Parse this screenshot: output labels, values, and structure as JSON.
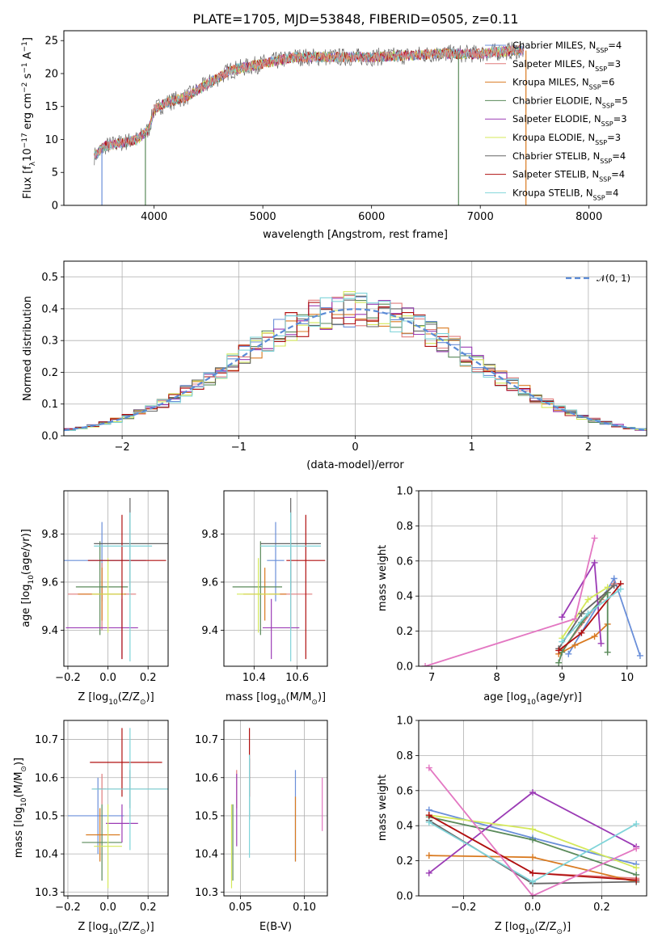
{
  "figure_title": "PLATE=1705, MJD=53848, FIBERID=0505, z=0.11",
  "legend_entries": [
    "Chabrier MILES, N$_{SSP}$=4",
    "Salpeter MILES, N$_{SSP}$=3",
    "Kroupa MILES, N$_{SSP}$=6",
    "Chabrier ELODIE, N$_{SSP}$=5",
    "Salpeter ELODIE, N$_{SSP}$=3",
    "Kroupa ELODIE, N$_{SSP}$=3",
    "Chabrier STELIB, N$_{SSP}$=4",
    "Salpeter STELIB, N$_{SSP}$=4",
    "Kroupa STELIB, N$_{SSP}$=4"
  ],
  "legend_display": [
    {
      "pre": "Chabrier MILES, N",
      "sub": "SSP",
      "post": "=4"
    },
    {
      "pre": "Salpeter MILES, N",
      "sub": "SSP",
      "post": "=3"
    },
    {
      "pre": "Kroupa MILES, N",
      "sub": "SSP",
      "post": "=6"
    },
    {
      "pre": "Chabrier ELODIE, N",
      "sub": "SSP",
      "post": "=5"
    },
    {
      "pre": "Salpeter ELODIE, N",
      "sub": "SSP",
      "post": "=3"
    },
    {
      "pre": "Kroupa ELODIE, N",
      "sub": "SSP",
      "post": "=3"
    },
    {
      "pre": "Chabrier STELIB, N",
      "sub": "SSP",
      "post": "=4"
    },
    {
      "pre": "Salpeter STELIB, N",
      "sub": "SSP",
      "post": "=4"
    },
    {
      "pre": "Kroupa STELIB, N",
      "sub": "SSP",
      "post": "=4"
    }
  ],
  "series_colors": [
    "#6a8fd9",
    "#e07c7c",
    "#d97a20",
    "#5a8a5a",
    "#9b3bb5",
    "#d4e85a",
    "#666666",
    "#b01010",
    "#7fd4d9"
  ],
  "pink_color": "#e377c2",
  "chart_data": [
    {
      "type": "line",
      "ylabel_pre": "Flux [f",
      "ylabel_sub": "λ",
      "ylabel_mid": "10",
      "ylabel_sup1": "−17",
      "ylabel_mid2": " erg cm",
      "ylabel_sup2": "−2",
      "ylabel_mid3": " s",
      "ylabel_sup3": "−1",
      "ylabel_mid4": " A",
      "ylabel_sup4": "−1",
      "ylabel_end": "]",
      "xlabel": "wavelength [Angstrom, rest frame]",
      "xlim": [
        3170,
        8530
      ],
      "ylim": [
        0,
        26.5
      ],
      "xticks": [
        4000,
        5000,
        6000,
        7000,
        8000
      ],
      "yticks": [
        0,
        5,
        10,
        15,
        20,
        25
      ],
      "xtick_labels": [
        "4000",
        "5000",
        "6000",
        "7000",
        "8000"
      ],
      "ytick_labels": [
        "0",
        "5",
        "10",
        "15",
        "20",
        "25"
      ],
      "continuum": [
        [
          3450,
          7.5
        ],
        [
          3550,
          9.0
        ],
        [
          3700,
          9.5
        ],
        [
          3850,
          10.0
        ],
        [
          3950,
          11.5
        ],
        [
          4000,
          14.5
        ],
        [
          4100,
          15.5
        ],
        [
          4300,
          16.5
        ],
        [
          4500,
          18.5
        ],
        [
          4700,
          20.5
        ],
        [
          5000,
          21.5
        ],
        [
          5300,
          22.5
        ],
        [
          5600,
          22.5
        ],
        [
          6000,
          22.5
        ],
        [
          6300,
          22.7
        ],
        [
          6600,
          23.0
        ],
        [
          7000,
          23.0
        ],
        [
          7300,
          23.5
        ]
      ]
    },
    {
      "type": "line",
      "xlabel": "(data-model)/error",
      "ylabel": "Normed distribution",
      "xlim": [
        -2.5,
        2.5
      ],
      "ylim": [
        0,
        0.55
      ],
      "xticks": [
        -2,
        -1,
        0,
        1,
        2
      ],
      "yticks": [
        0.0,
        0.1,
        0.2,
        0.3,
        0.4,
        0.5
      ],
      "xtick_labels": [
        "−2",
        "−1",
        "0",
        "1",
        "2"
      ],
      "ytick_labels": [
        "0.0",
        "0.1",
        "0.2",
        "0.3",
        "0.4",
        "0.5"
      ],
      "gauss_label": "𝒩(0, 1)"
    },
    {
      "type": "scatter",
      "xlabel_pre": "Z [log",
      "xlabel_sub": "10",
      "xlabel_post": "(Z/Z",
      "xlabel_sub2": "⊙",
      "xlabel_end": ")]",
      "ylabel_pre": "age  [log",
      "ylabel_sub": "10",
      "ylabel_post": "(age/yr)]",
      "xlim": [
        -0.22,
        0.3
      ],
      "ylim": [
        9.25,
        9.98
      ],
      "xticks": [
        -0.2,
        0.0,
        0.2
      ],
      "yticks": [
        9.4,
        9.6,
        9.8
      ],
      "xtick_labels": [
        "−0.2",
        "0.0",
        "0.2"
      ],
      "ytick_labels": [
        "9.4",
        "9.6",
        "9.8"
      ],
      "points": [
        {
          "x": -0.03,
          "y": 9.69,
          "xerr": [
            0.22,
            0.22
          ],
          "yerr": [
            0.17,
            0.16
          ]
        },
        {
          "x": -0.03,
          "y": 9.55,
          "xerr": [
            0.17,
            0.17
          ],
          "yerr": [
            0.15,
            0.13
          ]
        },
        {
          "x": -0.03,
          "y": 9.55,
          "xerr": [
            0.12,
            0.12
          ],
          "yerr": [
            0.11,
            0.11
          ]
        },
        {
          "x": -0.04,
          "y": 9.58,
          "xerr": [
            0.12,
            0.14
          ],
          "yerr": [
            0.2,
            0.19
          ]
        },
        {
          "x": 0.07,
          "y": 9.41,
          "xerr": [
            0.28,
            0.08
          ],
          "yerr": [
            0.13,
            0.12
          ]
        },
        {
          "x": 0.0,
          "y": 9.55,
          "xerr": [
            0.08,
            0.08
          ],
          "yerr": [
            0.16,
            0.15
          ]
        },
        {
          "x": 0.11,
          "y": 9.76,
          "xerr": [
            0.18,
            0.2
          ],
          "yerr": [
            0.2,
            0.19
          ]
        },
        {
          "x": 0.07,
          "y": 9.69,
          "xerr": [
            0.17,
            0.22
          ],
          "yerr": [
            0.41,
            0.19
          ]
        },
        {
          "x": 0.11,
          "y": 9.75,
          "xerr": [
            0.18,
            0.11
          ],
          "yerr": [
            0.48,
            0.14
          ]
        }
      ]
    },
    {
      "type": "scatter",
      "xlabel_pre": "mass [log",
      "xlabel_sub": "10",
      "xlabel_post": "(M/M",
      "xlabel_sub2": "⊙",
      "xlabel_end": ")]",
      "xlim": [
        10.26,
        10.74
      ],
      "ylim": [
        9.25,
        9.98
      ],
      "xticks": [
        10.4,
        10.6
      ],
      "yticks": [
        9.4,
        9.6,
        9.8
      ],
      "xtick_labels": [
        "10.4",
        "10.6"
      ],
      "ytick_labels": [
        "9.4",
        "9.6",
        "9.8"
      ],
      "points": [
        {
          "x": 10.5,
          "y": 9.69,
          "xerr": [
            0.04,
            0.04
          ],
          "yerr": [
            0.17,
            0.16
          ]
        },
        {
          "x": 10.57,
          "y": 9.55,
          "xerr": [
            0.1,
            0.1
          ],
          "yerr": [
            0.15,
            0.13
          ]
        },
        {
          "x": 10.45,
          "y": 9.55,
          "xerr": [
            0.1,
            0.1
          ],
          "yerr": [
            0.11,
            0.11
          ]
        },
        {
          "x": 10.43,
          "y": 9.58,
          "xerr": [
            0.13,
            0.1
          ],
          "yerr": [
            0.2,
            0.19
          ]
        },
        {
          "x": 10.48,
          "y": 9.41,
          "xerr": [
            0.04,
            0.13
          ],
          "yerr": [
            0.13,
            0.12
          ]
        },
        {
          "x": 10.42,
          "y": 9.55,
          "xerr": [
            0.1,
            0.1
          ],
          "yerr": [
            0.16,
            0.15
          ]
        },
        {
          "x": 10.57,
          "y": 9.76,
          "xerr": [
            0.14,
            0.14
          ],
          "yerr": [
            0.2,
            0.19
          ]
        },
        {
          "x": 10.64,
          "y": 9.69,
          "xerr": [
            0.09,
            0.09
          ],
          "yerr": [
            0.41,
            0.19
          ]
        },
        {
          "x": 10.57,
          "y": 9.75,
          "xerr": [
            0.14,
            0.14
          ],
          "yerr": [
            0.48,
            0.14
          ]
        }
      ]
    },
    {
      "type": "line",
      "xlabel_pre": "age  [log",
      "xlabel_sub": "10",
      "xlabel_post": "(age/yr)]",
      "ylabel": "mass weight",
      "xlim": [
        6.8,
        10.3
      ],
      "ylim": [
        0,
        1
      ],
      "xticks": [
        7,
        8,
        9,
        10
      ],
      "yticks": [
        0.0,
        0.2,
        0.4,
        0.6,
        0.8,
        1.0
      ],
      "xtick_labels": [
        "7",
        "8",
        "9",
        "10"
      ],
      "ytick_labels": [
        "0.0",
        "0.2",
        "0.4",
        "0.6",
        "0.8",
        "1.0"
      ],
      "series": [
        {
          "points": [
            [
              9.1,
              0.07
            ],
            [
              9.8,
              0.5
            ],
            [
              10.2,
              0.06
            ]
          ]
        },
        {
          "points": [
            [
              9.0,
              0.09
            ],
            [
              9.6,
              0.38
            ],
            [
              9.8,
              0.47
            ]
          ]
        },
        {
          "points": [
            [
              8.95,
              0.07
            ],
            [
              9.2,
              0.12
            ],
            [
              9.5,
              0.17
            ],
            [
              9.7,
              0.24
            ]
          ]
        },
        {
          "points": [
            [
              8.95,
              0.02
            ],
            [
              9.0,
              0.08
            ],
            [
              9.3,
              0.25
            ],
            [
              9.7,
              0.42
            ],
            [
              9.7,
              0.08
            ]
          ]
        },
        {
          "points": [
            [
              9.0,
              0.28
            ],
            [
              9.5,
              0.59
            ],
            [
              9.6,
              0.13
            ]
          ]
        },
        {
          "points": [
            [
              9.0,
              0.16
            ],
            [
              9.4,
              0.38
            ],
            [
              9.7,
              0.45
            ]
          ]
        },
        {
          "points": [
            [
              8.95,
              0.1
            ],
            [
              9.3,
              0.3
            ],
            [
              9.8,
              0.46
            ]
          ]
        },
        {
          "points": [
            [
              8.95,
              0.09
            ],
            [
              9.3,
              0.19
            ],
            [
              9.9,
              0.47
            ]
          ]
        },
        {
          "points": [
            [
              9.0,
              0.14
            ],
            [
              9.4,
              0.3
            ],
            [
              9.9,
              0.44
            ]
          ]
        },
        {
          "points": [
            [
              6.9,
              0.0
            ],
            [
              9.2,
              0.27
            ],
            [
              9.5,
              0.73
            ]
          ]
        }
      ]
    },
    {
      "type": "scatter",
      "xlabel_pre": "Z [log",
      "xlabel_sub": "10",
      "xlabel_post": "(Z/Z",
      "xlabel_sub2": "⊙",
      "xlabel_end": ")]",
      "ylabel_pre": "mass [log",
      "ylabel_sub": "10",
      "ylabel_post": "(M/M",
      "ylabel_sub2": "⊙",
      "ylabel_end": ")]",
      "xlim": [
        -0.22,
        0.3
      ],
      "ylim": [
        10.29,
        10.75
      ],
      "xticks": [
        -0.2,
        0.0,
        0.2
      ],
      "yticks": [
        10.3,
        10.4,
        10.5,
        10.6,
        10.7
      ],
      "xtick_labels": [
        "−0.2",
        "0.0",
        "0.2"
      ],
      "ytick_labels": [
        "10.3",
        "10.4",
        "10.5",
        "10.6",
        "10.7"
      ],
      "points": [
        {
          "x": -0.05,
          "y": 10.5,
          "xerr": [
            0.15,
            0.13
          ],
          "yerr": [
            0.1,
            0.1
          ]
        },
        {
          "x": -0.03,
          "y": 10.57,
          "xerr": [
            0.02,
            0.02
          ],
          "yerr": [
            0.04,
            0.04
          ]
        },
        {
          "x": -0.04,
          "y": 10.45,
          "xerr": [
            0.07,
            0.1
          ],
          "yerr": [
            0.07,
            0.07
          ]
        },
        {
          "x": -0.03,
          "y": 10.43,
          "xerr": [
            0.1,
            0.1
          ],
          "yerr": [
            0.1,
            0.1
          ]
        },
        {
          "x": 0.07,
          "y": 10.48,
          "xerr": [
            0.08,
            0.08
          ],
          "yerr": [
            0.05,
            0.05
          ]
        },
        {
          "x": 0.0,
          "y": 10.42,
          "xerr": [
            0.07,
            0.07
          ],
          "yerr": [
            0.11,
            0.11
          ]
        },
        {
          "x": 0.11,
          "y": 10.57,
          "xerr": [
            0.19,
            0.19
          ],
          "yerr": [
            0.05,
            0.05
          ]
        },
        {
          "x": 0.07,
          "y": 10.64,
          "xerr": [
            0.16,
            0.2
          ],
          "yerr": [
            0.09,
            0.09
          ]
        },
        {
          "x": 0.11,
          "y": 10.57,
          "xerr": [
            0.19,
            0.19
          ],
          "yerr": [
            0.16,
            0.16
          ]
        }
      ]
    },
    {
      "type": "scatter",
      "xlabel": "E(B-V)",
      "xlim": [
        0.037,
        0.118
      ],
      "ylim": [
        10.29,
        10.75
      ],
      "xticks": [
        0.05,
        0.1
      ],
      "yticks": [
        10.3,
        10.4,
        10.5,
        10.6,
        10.7
      ],
      "xtick_labels": [
        "0.05",
        "0.10"
      ],
      "ytick_labels": [
        "10.3",
        "10.4",
        "10.5",
        "10.6",
        "10.7"
      ],
      "points": [
        {
          "x": 0.093,
          "y": 10.5,
          "yerr": [
            0.12,
            0.12
          ]
        },
        {
          "x": 0.047,
          "y": 10.57,
          "yerr": [
            0.05,
            0.05
          ]
        },
        {
          "x": 0.093,
          "y": 10.45,
          "yerr": [
            0.07,
            0.1
          ]
        },
        {
          "x": 0.044,
          "y": 10.43,
          "yerr": [
            0.1,
            0.1
          ]
        },
        {
          "x": 0.047,
          "y": 10.48,
          "yerr": [
            0.06,
            0.13
          ]
        },
        {
          "x": 0.043,
          "y": 10.42,
          "yerr": [
            0.11,
            0.11
          ]
        },
        {
          "x": 0.057,
          "y": 10.57,
          "yerr": [
            0.08,
            0.08
          ]
        },
        {
          "x": 0.057,
          "y": 10.64,
          "yerr": [
            0.09,
            0.09
          ]
        },
        {
          "x": 0.057,
          "y": 10.57,
          "yerr": [
            0.18,
            0.09
          ]
        },
        {
          "x": 0.114,
          "y": 10.53,
          "yerr": [
            0.07,
            0.07
          ]
        }
      ]
    },
    {
      "type": "line",
      "xlabel_pre": "Z [log",
      "xlabel_sub": "10",
      "xlabel_post": "(Z/Z",
      "xlabel_sub2": "⊙",
      "xlabel_end": ")]",
      "ylabel": "mass weight",
      "xlim": [
        -0.33,
        0.33
      ],
      "ylim": [
        0,
        1
      ],
      "xticks": [
        -0.2,
        0.0,
        0.2
      ],
      "yticks": [
        0.0,
        0.2,
        0.4,
        0.6,
        0.8,
        1.0
      ],
      "xtick_labels": [
        "−0.2",
        "0.0",
        "0.2"
      ],
      "ytick_labels": [
        "0.0",
        "0.2",
        "0.4",
        "0.6",
        "0.8",
        "1.0"
      ],
      "series": [
        {
          "points": [
            [
              -0.3,
              0.49
            ],
            [
              0.0,
              0.33
            ],
            [
              0.3,
              0.18
            ]
          ]
        },
        {
          "points": [
            [
              -0.3,
              0.46
            ],
            [
              0.0,
              0.13
            ],
            [
              0.3,
              0.1
            ]
          ]
        },
        {
          "points": [
            [
              -0.3,
              0.23
            ],
            [
              0.0,
              0.22
            ],
            [
              0.3,
              0.08
            ]
          ]
        },
        {
          "points": [
            [
              -0.3,
              0.45
            ],
            [
              0.0,
              0.32
            ],
            [
              0.3,
              0.12
            ]
          ]
        },
        {
          "points": [
            [
              -0.3,
              0.13
            ],
            [
              0.0,
              0.59
            ],
            [
              0.3,
              0.28
            ]
          ]
        },
        {
          "points": [
            [
              -0.3,
              0.46
            ],
            [
              0.0,
              0.38
            ],
            [
              0.3,
              0.16
            ]
          ]
        },
        {
          "points": [
            [
              -0.3,
              0.43
            ],
            [
              0.0,
              0.07
            ],
            [
              0.3,
              0.08
            ]
          ]
        },
        {
          "points": [
            [
              -0.3,
              0.46
            ],
            [
              0.0,
              0.13
            ],
            [
              0.3,
              0.09
            ]
          ]
        },
        {
          "points": [
            [
              -0.3,
              0.42
            ],
            [
              0.0,
              0.08
            ],
            [
              0.3,
              0.41
            ]
          ]
        },
        {
          "points": [
            [
              -0.3,
              0.73
            ],
            [
              0.0,
              0.0
            ],
            [
              0.3,
              0.27
            ]
          ]
        }
      ]
    }
  ]
}
